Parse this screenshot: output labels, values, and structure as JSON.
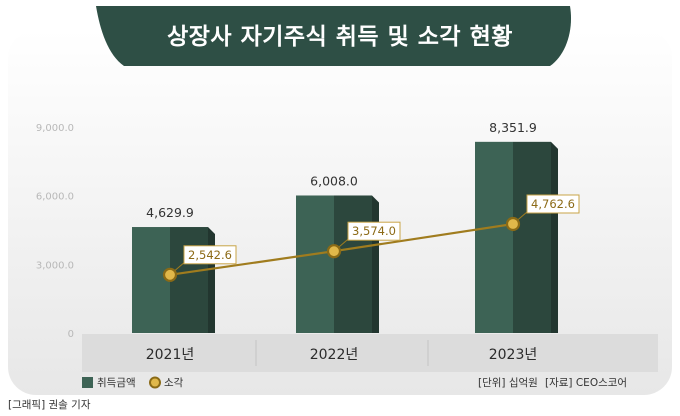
{
  "title": "상장사 자기주식 취득 및 소각 현황",
  "chart_data": {
    "type": "bar",
    "categories": [
      "2021년",
      "2022년",
      "2023년"
    ],
    "series": [
      {
        "name": "취득금액",
        "kind": "bar",
        "color": "#3d6355",
        "values": [
          4629.9,
          6008.0,
          8351.9
        ],
        "labels": [
          "4,629.9",
          "6,008.0",
          "8,351.9"
        ]
      },
      {
        "name": "소각",
        "kind": "line",
        "color": "#a07c1e",
        "values": [
          2542.6,
          3574.0,
          4762.6
        ],
        "labels": [
          "2,542.6",
          "3,574.0",
          "4,762.6"
        ]
      }
    ],
    "yticks": [
      0,
      3000,
      6000,
      9000
    ],
    "ytick_labels": [
      "0",
      "3,000.0",
      "6,000.0",
      "9,000.0"
    ],
    "ylim": [
      0,
      9000
    ],
    "legend_position": "bottom-left"
  },
  "unit_note": "[단위] 십억원",
  "source_note": "[자료] CEO스코어",
  "credit": "[그래픽] 권솔 기자"
}
